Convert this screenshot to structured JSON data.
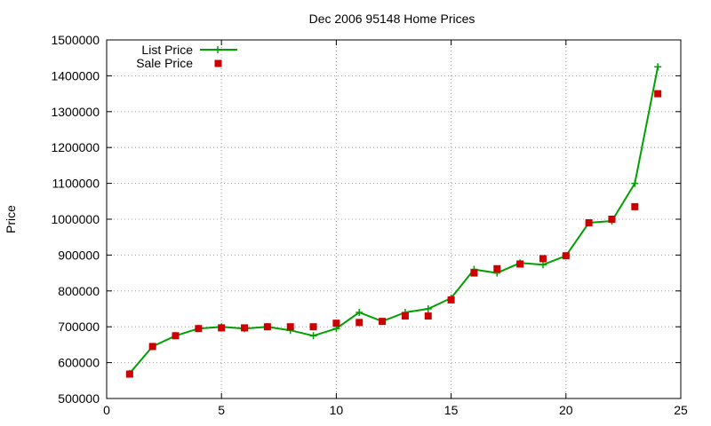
{
  "chart_data": {
    "type": "line",
    "title": "Dec 2006 95148 Home Prices",
    "xlabel": "",
    "ylabel": "Price",
    "xlim": [
      0,
      25
    ],
    "ylim": [
      500000,
      1500000
    ],
    "xticks": [
      "0",
      "5",
      "10",
      "15",
      "20",
      "25"
    ],
    "yticks": [
      "500000",
      "600000",
      "700000",
      "800000",
      "900000",
      "1000000",
      "1100000",
      "1200000",
      "1300000",
      "1400000",
      "1500000"
    ],
    "grid": true,
    "legend_position": "top-left",
    "series": [
      {
        "name": "List Price",
        "style": "line+cross",
        "color": "#00a000",
        "x": [
          1,
          2,
          3,
          4,
          5,
          6,
          7,
          8,
          9,
          10,
          11,
          12,
          13,
          14,
          15,
          16,
          17,
          18,
          19,
          20,
          21,
          22,
          23,
          24
        ],
        "values": [
          570000,
          645000,
          675000,
          695000,
          700000,
          695000,
          700000,
          690000,
          675000,
          695000,
          740000,
          715000,
          740000,
          750000,
          780000,
          860000,
          850000,
          878000,
          873000,
          898000,
          990000,
          995000,
          1100000,
          1425000
        ]
      },
      {
        "name": "Sale Price",
        "style": "square",
        "color": "#cc0000",
        "x": [
          1,
          2,
          3,
          4,
          5,
          6,
          7,
          8,
          9,
          10,
          11,
          12,
          13,
          14,
          15,
          16,
          17,
          18,
          19,
          20,
          21,
          22,
          23,
          24
        ],
        "values": [
          568000,
          645000,
          675000,
          695000,
          697000,
          697000,
          700000,
          700000,
          700000,
          710000,
          712000,
          715000,
          730000,
          730000,
          775000,
          850000,
          862000,
          875000,
          890000,
          898000,
          990000,
          1000000,
          1035000,
          1350000
        ]
      }
    ]
  }
}
